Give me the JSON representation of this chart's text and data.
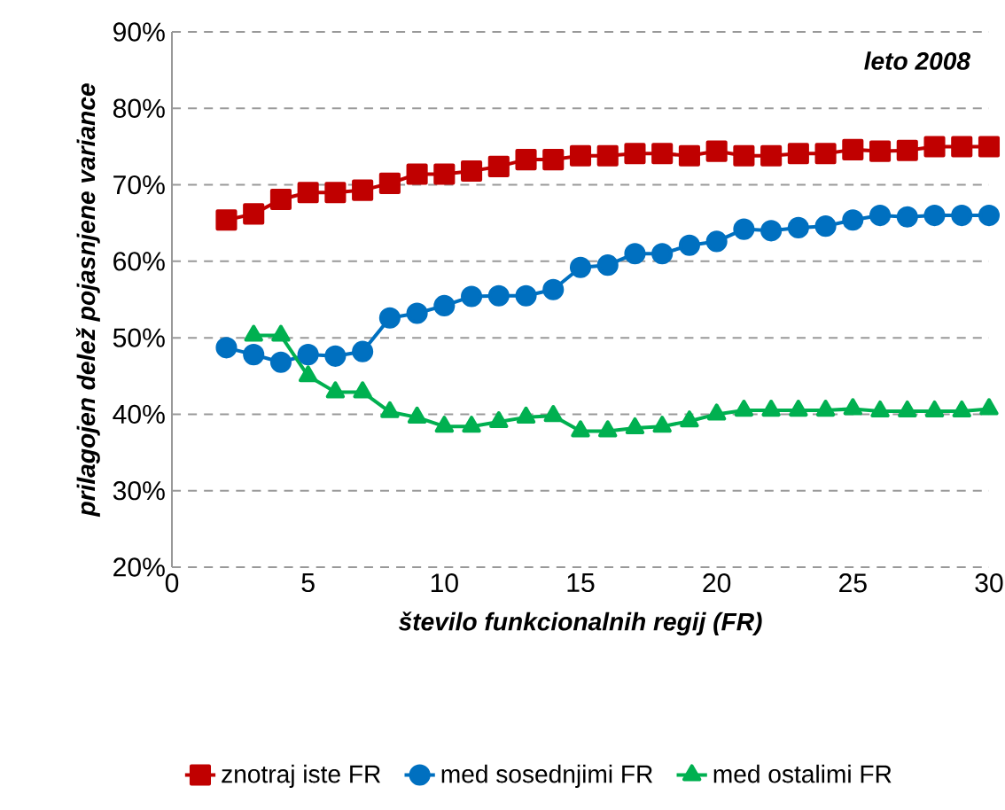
{
  "chart_data": {
    "type": "line",
    "xlabel": "število funkcionalnih regij (FR)",
    "ylabel": "prilagojen delež pojasnjene  variance",
    "annotations": [
      "leto 2008"
    ],
    "x": [
      2,
      3,
      4,
      5,
      6,
      7,
      8,
      9,
      10,
      11,
      12,
      13,
      14,
      15,
      16,
      17,
      18,
      19,
      20,
      21,
      22,
      23,
      24,
      25,
      26,
      27,
      28,
      29,
      30
    ],
    "series": [
      {
        "name": "znotraj iste FR",
        "color": "#c00000",
        "marker": "square",
        "values": [
          65.4,
          66.2,
          68.1,
          69,
          69,
          69.3,
          70.2,
          71.4,
          71.4,
          71.8,
          72.4,
          73.3,
          73.3,
          73.8,
          73.8,
          74.1,
          74.1,
          73.8,
          74.4,
          73.8,
          73.8,
          74.1,
          74.1,
          74.6,
          74.4,
          74.5,
          75,
          75,
          75
        ]
      },
      {
        "name": "med sosednjimi FR",
        "color": "#0070c0",
        "marker": "circle",
        "values": [
          48.7,
          47.8,
          46.8,
          47.8,
          47.6,
          48.2,
          52.6,
          53.2,
          54.2,
          55.4,
          55.5,
          55.5,
          56.3,
          59.2,
          59.5,
          61,
          61,
          62.1,
          62.6,
          64.2,
          64,
          64.4,
          64.6,
          65.4,
          66,
          65.8,
          66,
          66,
          66
        ]
      },
      {
        "name": "med ostalimi FR",
        "color": "#00b050",
        "marker": "triangle",
        "x": [
          3,
          4,
          5,
          6,
          7,
          8,
          9,
          10,
          11,
          12,
          13,
          14,
          15,
          16,
          17,
          18,
          19,
          20,
          21,
          22,
          23,
          24,
          25,
          26,
          27,
          28,
          29,
          30
        ],
        "values": [
          50.3,
          50.3,
          45,
          42.9,
          42.9,
          40.3,
          39.6,
          38.4,
          38.4,
          39,
          39.6,
          39.8,
          37.8,
          37.8,
          38.2,
          38.4,
          39.1,
          40,
          40.5,
          40.5,
          40.5,
          40.5,
          40.7,
          40.4,
          40.4,
          40.4,
          40.4,
          40.7
        ]
      }
    ],
    "xlim": [
      0,
      30
    ],
    "xticks": [
      0,
      5,
      10,
      15,
      20,
      25,
      30
    ],
    "ylim": [
      20,
      90
    ],
    "yticks": [
      {
        "value": 20,
        "label": "20%"
      },
      {
        "value": 30,
        "label": "30%"
      },
      {
        "value": 40,
        "label": "40%"
      },
      {
        "value": 50,
        "label": "50%"
      },
      {
        "value": 60,
        "label": "60%"
      },
      {
        "value": 70,
        "label": "70%"
      },
      {
        "value": 80,
        "label": "80%"
      },
      {
        "value": 90,
        "label": "90%"
      }
    ],
    "grid": "y",
    "legend": "bottom",
    "line_style": "solid"
  }
}
